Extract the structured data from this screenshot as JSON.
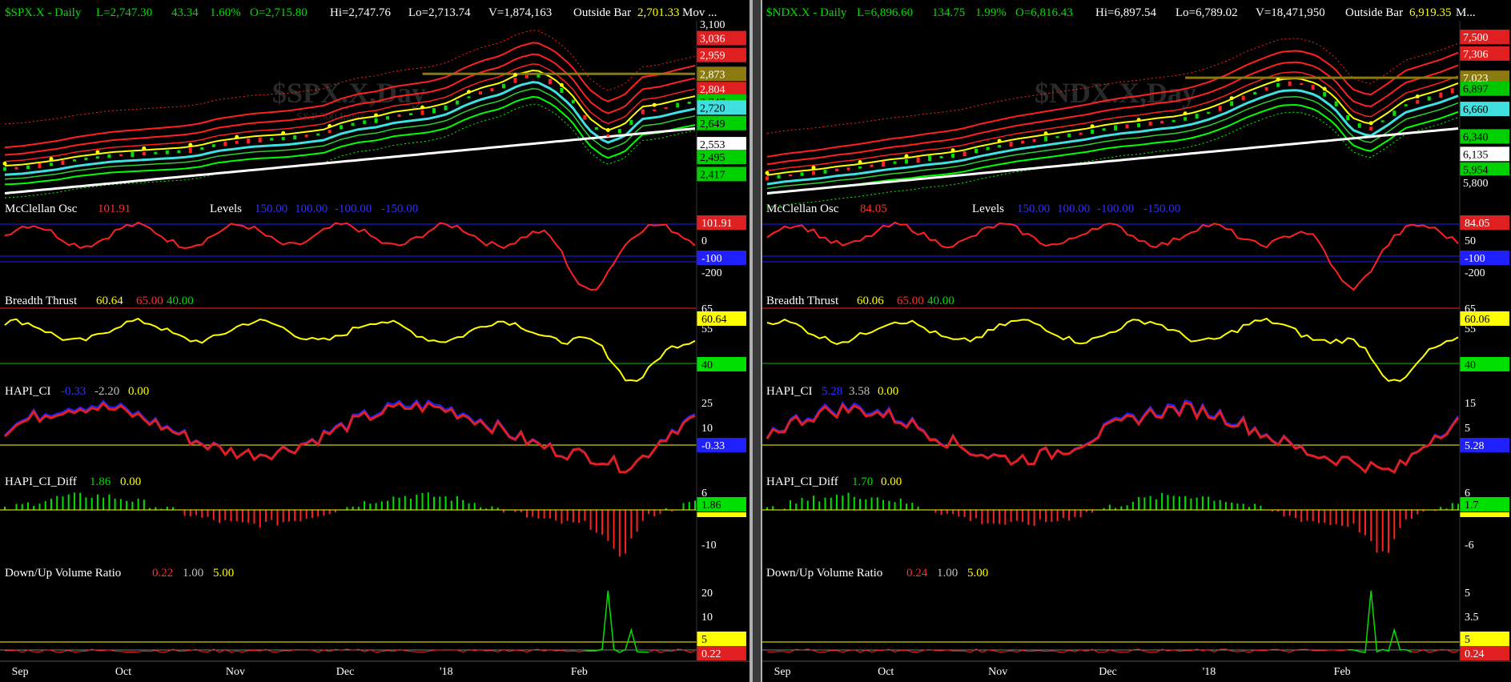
{
  "colors": {
    "bg": "#000000",
    "up": "#00ff00",
    "down": "#ff2020",
    "yellow": "#ffff00",
    "blue": "#2020ff",
    "cyan": "#40e0e0",
    "white": "#ffffff",
    "gray": "#c0c0c0",
    "olive": "#8a7a10",
    "label_green": "#00e000"
  },
  "windows": [
    {
      "id": "spx",
      "header": {
        "symbol": "$SPX.X - Daily",
        "last": "L=2,747.30",
        "change": "43.34",
        "pct": "1.60%",
        "open": "O=2,715.80",
        "high": "Hi=2,747.76",
        "low": "Lo=2,713.74",
        "volume": "V=1,874,163",
        "pattern": "Outside Bar",
        "extra_value": "2,701.33",
        "extra_label": "Mov ..."
      },
      "watermark": "$SPX.X,Day",
      "watermark_sub": "S&P 500 Index",
      "price_labels": [
        {
          "text": "3,100",
          "bg": "#000000",
          "fg": "#ffffff",
          "v": 3100
        },
        {
          "text": "3,036",
          "bg": "#e02020",
          "fg": "#ffffff",
          "v": 3036
        },
        {
          "text": "2,959",
          "bg": "#e02020",
          "fg": "#ffffff",
          "v": 2959
        },
        {
          "text": "2,873",
          "bg": "#8a7a10",
          "fg": "#ffffff",
          "v": 2873
        },
        {
          "text": "2,804",
          "bg": "#e02020",
          "fg": "#ffffff",
          "v": 2804
        },
        {
          "text": "2,747",
          "bg": "#00c800",
          "fg": "#000000",
          "v": 2747
        },
        {
          "text": "2,720",
          "bg": "#40e0e0",
          "fg": "#000000",
          "v": 2720
        },
        {
          "text": "2,649",
          "bg": "#00d000",
          "fg": "#000000",
          "v": 2649
        },
        {
          "text": "2,553",
          "bg": "#ffffff",
          "fg": "#000000",
          "v": 2553
        },
        {
          "text": "2,495",
          "bg": "#00d000",
          "fg": "#000000",
          "v": 2495
        },
        {
          "text": "2,417",
          "bg": "#00d000",
          "fg": "#000000",
          "v": 2417
        }
      ],
      "price_scale": {
        "min": 2280,
        "max": 3100
      },
      "mcclellan": {
        "label": "McClellan Osc",
        "value": "101.91",
        "levels_label": "Levels",
        "levels": [
          "150.00",
          "100.00",
          "-100.00",
          "-150.00"
        ],
        "axis": [
          "0",
          "-100",
          "-200"
        ],
        "badge": "101.91"
      },
      "breadth": {
        "label": "Breadth Thrust",
        "value": "60.64",
        "l1": "65.00",
        "l2": "40.00",
        "axis": [
          "65",
          "55",
          "40"
        ],
        "badge": "60.64",
        "badge_40": "40"
      },
      "hapi": {
        "label": "HAPI_CI",
        "value": "-0.33",
        "v2": "-2.20",
        "v3": "0.00",
        "axis": [
          "25",
          "10",
          "-3"
        ],
        "badge": "-0.33"
      },
      "hapi_diff": {
        "label": "HAPI_CI_Diff",
        "value": "1.86",
        "v2": "0.00",
        "axis": [
          "6",
          "0",
          "-10"
        ],
        "badge": "1.86"
      },
      "dvr": {
        "label": "Down/Up Volume Ratio",
        "value": "0.22",
        "v2": "1.00",
        "v3": "5.00",
        "axis": [
          "20",
          "10",
          "5"
        ],
        "badge": "0.22",
        "badge_5": "5"
      },
      "xaxis": [
        "Sep",
        "Oct",
        "Nov",
        "Dec",
        "'18",
        "Feb"
      ],
      "chart_data": {
        "type": "line",
        "title": "$SPX.X - Daily",
        "series": [
          {
            "name": "Close",
            "values": [
              2440,
              2445,
              2455,
              2465,
              2480,
              2490,
              2500,
              2505,
              2510,
              2515,
              2520,
              2530,
              2550,
              2560,
              2570,
              2575,
              2580,
              2590,
              2600,
              2630,
              2650,
              2660,
              2680,
              2690,
              2700,
              2720,
              2760,
              2790,
              2810,
              2850,
              2870,
              2830,
              2760,
              2650,
              2590,
              2620,
              2700,
              2710,
              2730,
              2747
            ]
          }
        ]
      }
    },
    {
      "id": "ndx",
      "header": {
        "symbol": "$NDX.X - Daily",
        "last": "L=6,896.60",
        "change": "134.75",
        "pct": "1.99%",
        "open": "O=6,816.43",
        "high": "Hi=6,897.54",
        "low": "Lo=6,789.02",
        "volume": "V=18,471,950",
        "pattern": "Outside Bar",
        "extra_value": "6,919.35",
        "extra_label": "M..."
      },
      "watermark": "$NDX.X,Day",
      "watermark_sub": "",
      "price_labels": [
        {
          "text": "7,500",
          "bg": "#e02020",
          "fg": "#ffffff",
          "v": 7500
        },
        {
          "text": "7,306",
          "bg": "#e02020",
          "fg": "#ffffff",
          "v": 7306
        },
        {
          "text": "7,023",
          "bg": "#8a7a10",
          "fg": "#ffffff",
          "v": 7023
        },
        {
          "text": "6,897",
          "bg": "#00c800",
          "fg": "#000000",
          "v": 6897
        },
        {
          "text": "6,660",
          "bg": "#40e0e0",
          "fg": "#000000",
          "v": 6660
        },
        {
          "text": "6,340",
          "bg": "#00d000",
          "fg": "#000000",
          "v": 6340
        },
        {
          "text": "6,135",
          "bg": "#ffffff",
          "fg": "#000000",
          "v": 6135
        },
        {
          "text": "5,954",
          "bg": "#00d000",
          "fg": "#000000",
          "v": 5954
        },
        {
          "text": "5,800",
          "bg": "#000000",
          "fg": "#ffffff",
          "v": 5800
        }
      ],
      "price_scale": {
        "min": 5550,
        "max": 7650
      },
      "mcclellan": {
        "label": "McClellan Osc",
        "value": "84.05",
        "levels_label": "Levels",
        "levels": [
          "150.00",
          "100.00",
          "-100.00",
          "-150.00"
        ],
        "axis": [
          "50",
          "-100",
          "-200"
        ],
        "badge": "84.05"
      },
      "breadth": {
        "label": "Breadth Thrust",
        "value": "60.06",
        "l1": "65.00",
        "l2": "40.00",
        "axis": [
          "65",
          "55",
          "40"
        ],
        "badge": "60.06",
        "badge_40": "40"
      },
      "hapi": {
        "label": "HAPI_CI",
        "value": "5.28",
        "v2": "3.58",
        "v3": "0.00",
        "axis": [
          "15",
          "5",
          "0"
        ],
        "badge": "5.28"
      },
      "hapi_diff": {
        "label": "HAPI_CI_Diff",
        "value": "1.70",
        "v2": "0.00",
        "axis": [
          "6",
          "0",
          "-6"
        ],
        "badge": "1.7"
      },
      "dvr": {
        "label": "Down/Up Volume Ratio",
        "value": "0.24",
        "v2": "1.00",
        "v3": "5.00",
        "axis": [
          "5",
          "3.5",
          "1.5"
        ],
        "badge": "0.24",
        "badge_5": "5"
      },
      "xaxis": [
        "Sep",
        "Oct",
        "Nov",
        "Dec",
        "'18",
        "Feb"
      ],
      "chart_data": {
        "type": "line",
        "title": "$NDX.X - Daily",
        "series": [
          {
            "name": "Close",
            "values": [
              5850,
              5880,
              5900,
              5920,
              5950,
              5970,
              6000,
              6030,
              6050,
              6080,
              6100,
              6130,
              6180,
              6220,
              6260,
              6290,
              6320,
              6350,
              6380,
              6420,
              6450,
              6470,
              6500,
              6520,
              6560,
              6620,
              6700,
              6800,
              6880,
              6950,
              6960,
              6900,
              6750,
              6500,
              6420,
              6550,
              6700,
              6760,
              6820,
              6897
            ]
          }
        ]
      }
    }
  ]
}
